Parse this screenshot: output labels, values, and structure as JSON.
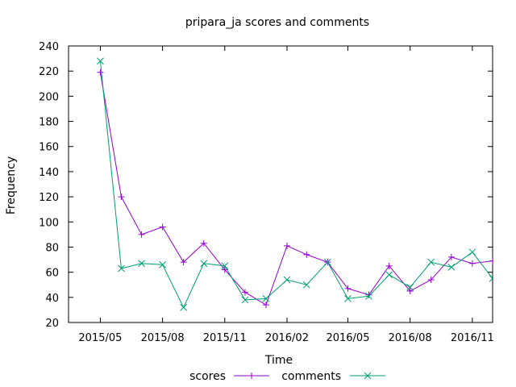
{
  "chart_data": {
    "type": "line",
    "title": "pripara_ja scores and comments",
    "xlabel": "Time",
    "ylabel": "Frequency",
    "ylim": [
      20,
      240
    ],
    "yticks": [
      20,
      40,
      60,
      80,
      100,
      120,
      140,
      160,
      180,
      200,
      220,
      240
    ],
    "xlim": [
      "2015-03-15",
      "2016-12-01"
    ],
    "xticks": [
      {
        "value": "2015-05-01",
        "label": "2015/05"
      },
      {
        "value": "2015-08-01",
        "label": "2015/08"
      },
      {
        "value": "2015-11-01",
        "label": "2015/11"
      },
      {
        "value": "2016-02-01",
        "label": "2016/02"
      },
      {
        "value": "2016-05-01",
        "label": "2016/05"
      },
      {
        "value": "2016-08-01",
        "label": "2016/08"
      },
      {
        "value": "2016-11-01",
        "label": "2016/11"
      }
    ],
    "grid": false,
    "legend_position": "bottom",
    "x": [
      "2015-05-01",
      "2015-06-01",
      "2015-07-01",
      "2015-08-01",
      "2015-09-01",
      "2015-10-01",
      "2015-11-01",
      "2015-12-01",
      "2016-01-01",
      "2016-02-01",
      "2016-03-01",
      "2016-04-01",
      "2016-05-01",
      "2016-06-01",
      "2016-07-01",
      "2016-08-01",
      "2016-09-01",
      "2016-10-01",
      "2016-11-01",
      "2016-12-01"
    ],
    "series": [
      {
        "name": "scores",
        "color": "#9400d3",
        "marker": "plus",
        "values": [
          219,
          120,
          90,
          96,
          68,
          83,
          62,
          44,
          34,
          81,
          74,
          68,
          47,
          42,
          65,
          45,
          54,
          72,
          67,
          69
        ]
      },
      {
        "name": "comments",
        "color": "#009e73",
        "marker": "cross",
        "values": [
          228,
          63,
          67,
          66,
          32,
          67,
          65,
          38,
          39,
          54,
          50,
          68,
          39,
          41,
          58,
          48,
          68,
          64,
          76,
          55
        ]
      }
    ]
  }
}
